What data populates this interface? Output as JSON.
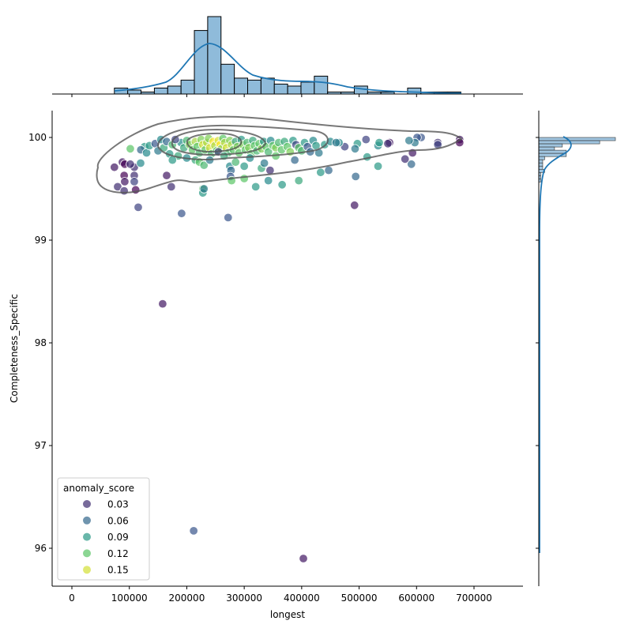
{
  "chart_data": {
    "type": "scatter",
    "subtype": "jointplot with marginal histograms and KDE contours",
    "xlabel": "longest",
    "ylabel": "Completeness_Specific",
    "xlim": [
      -35000,
      785000
    ],
    "ylim": [
      95.6,
      100.26
    ],
    "xticks": [
      0,
      100000,
      200000,
      300000,
      400000,
      500000,
      600000,
      700000
    ],
    "xtick_labels": [
      "0",
      "100000",
      "200000",
      "300000",
      "400000",
      "500000",
      "600000",
      "700000"
    ],
    "yticks": [
      96,
      97,
      98,
      99,
      100
    ],
    "ytick_labels": [
      "96",
      "97",
      "98",
      "99",
      "100"
    ],
    "grid": false,
    "hue": "anomaly_score",
    "colormap": "viridis",
    "hue_range": [
      0.01,
      0.16
    ],
    "legend": {
      "title": "anomaly_score",
      "placement": "lower-left",
      "entries": [
        {
          "label": "0.03",
          "value": 0.03
        },
        {
          "label": "0.06",
          "value": 0.06
        },
        {
          "label": "0.09",
          "value": 0.09
        },
        {
          "label": "0.12",
          "value": 0.12
        },
        {
          "label": "0.15",
          "value": 0.15
        }
      ]
    },
    "points": [
      [
        74000,
        99.71,
        0.02
      ],
      [
        88000,
        99.76,
        0.02
      ],
      [
        92000,
        99.74,
        0.01
      ],
      [
        91000,
        99.63,
        0.01
      ],
      [
        108600,
        99.71,
        0.03
      ],
      [
        108600,
        99.63,
        0.03
      ],
      [
        108600,
        99.57,
        0.04
      ],
      [
        79700,
        99.52,
        0.03
      ],
      [
        91000,
        99.48,
        0.03
      ],
      [
        111000,
        99.49,
        0.01
      ],
      [
        92000,
        99.57,
        0.02
      ],
      [
        115500,
        99.32,
        0.04
      ],
      [
        101700,
        99.74,
        0.03
      ],
      [
        101700,
        99.89,
        0.12
      ],
      [
        119600,
        99.75,
        0.08
      ],
      [
        126500,
        99.91,
        0.09
      ],
      [
        165000,
        99.63,
        0.02
      ],
      [
        173000,
        99.52,
        0.03
      ],
      [
        191000,
        99.26,
        0.05
      ],
      [
        272000,
        99.22,
        0.05
      ],
      [
        158000,
        98.38,
        0.02
      ],
      [
        212000,
        96.17,
        0.05
      ],
      [
        403000,
        95.9,
        0.02
      ],
      [
        492000,
        99.34,
        0.02
      ],
      [
        494000,
        99.62,
        0.06
      ],
      [
        533000,
        99.72,
        0.09
      ],
      [
        514000,
        99.81,
        0.09
      ],
      [
        591000,
        99.74,
        0.06
      ],
      [
        580000,
        99.79,
        0.03
      ],
      [
        593000,
        99.85,
        0.02
      ],
      [
        637000,
        99.95,
        0.03
      ],
      [
        637000,
        99.93,
        0.04
      ],
      [
        675000,
        99.98,
        0.02
      ],
      [
        675000,
        99.95,
        0.01
      ],
      [
        608000,
        100.0,
        0.05
      ],
      [
        601000,
        100.0,
        0.05
      ],
      [
        597000,
        99.95,
        0.07
      ],
      [
        587000,
        99.97,
        0.07
      ],
      [
        553000,
        99.95,
        0.02
      ],
      [
        550000,
        99.94,
        0.03
      ],
      [
        533000,
        99.92,
        0.08
      ],
      [
        535000,
        99.95,
        0.09
      ],
      [
        512000,
        99.98,
        0.04
      ],
      [
        497000,
        99.94,
        0.09
      ],
      [
        493000,
        99.89,
        0.07
      ],
      [
        475000,
        99.91,
        0.04
      ],
      [
        465000,
        99.95,
        0.08
      ],
      [
        447000,
        99.68,
        0.06
      ],
      [
        433000,
        99.66,
        0.09
      ],
      [
        395000,
        99.58,
        0.1
      ],
      [
        366000,
        99.54,
        0.09
      ],
      [
        388000,
        99.78,
        0.06
      ],
      [
        190000,
        99.95,
        0.08
      ],
      [
        195000,
        99.9,
        0.1
      ],
      [
        200000,
        99.97,
        0.11
      ],
      [
        205000,
        99.93,
        0.13
      ],
      [
        210000,
        99.88,
        0.12
      ],
      [
        215000,
        99.96,
        0.14
      ],
      [
        218000,
        99.91,
        0.12
      ],
      [
        222000,
        99.85,
        0.11
      ],
      [
        225000,
        99.98,
        0.13
      ],
      [
        228000,
        99.93,
        0.15
      ],
      [
        232000,
        99.88,
        0.12
      ],
      [
        235000,
        99.95,
        0.14
      ],
      [
        238000,
        99.99,
        0.13
      ],
      [
        240000,
        99.9,
        0.15
      ],
      [
        243000,
        99.84,
        0.11
      ],
      [
        246000,
        99.96,
        0.16
      ],
      [
        249000,
        99.92,
        0.14
      ],
      [
        252000,
        99.87,
        0.12
      ],
      [
        255000,
        99.97,
        0.15
      ],
      [
        258000,
        99.93,
        0.16
      ],
      [
        260000,
        99.89,
        0.13
      ],
      [
        263000,
        99.99,
        0.12
      ],
      [
        266000,
        99.95,
        0.14
      ],
      [
        269000,
        99.9,
        0.15
      ],
      [
        272000,
        99.85,
        0.11
      ],
      [
        275000,
        99.97,
        0.13
      ],
      [
        278000,
        99.93,
        0.14
      ],
      [
        281000,
        99.88,
        0.12
      ],
      [
        285000,
        99.96,
        0.1
      ],
      [
        288000,
        99.91,
        0.13
      ],
      [
        291000,
        99.85,
        0.12
      ],
      [
        295000,
        99.98,
        0.09
      ],
      [
        298000,
        99.93,
        0.13
      ],
      [
        302000,
        99.88,
        0.12
      ],
      [
        305000,
        99.95,
        0.11
      ],
      [
        308000,
        99.9,
        0.13
      ],
      [
        312000,
        99.84,
        0.12
      ],
      [
        315000,
        99.97,
        0.1
      ],
      [
        318000,
        99.92,
        0.12
      ],
      [
        322000,
        99.87,
        0.11
      ],
      [
        326000,
        99.94,
        0.12
      ],
      [
        330000,
        99.89,
        0.13
      ],
      [
        334000,
        99.96,
        0.09
      ],
      [
        338000,
        99.91,
        0.12
      ],
      [
        342000,
        99.86,
        0.11
      ],
      [
        346000,
        99.97,
        0.08
      ],
      [
        350000,
        99.92,
        0.12
      ],
      [
        355000,
        99.9,
        0.13
      ],
      [
        360000,
        99.95,
        0.11
      ],
      [
        365000,
        99.88,
        0.12
      ],
      [
        370000,
        99.96,
        0.1
      ],
      [
        375000,
        99.91,
        0.12
      ],
      [
        380000,
        99.86,
        0.13
      ],
      [
        385000,
        99.97,
        0.09
      ],
      [
        390000,
        99.93,
        0.04
      ],
      [
        395000,
        99.9,
        0.12
      ],
      [
        400000,
        99.87,
        0.11
      ],
      [
        405000,
        99.95,
        0.09
      ],
      [
        410000,
        99.91,
        0.05
      ],
      [
        415000,
        99.86,
        0.06
      ],
      [
        420000,
        99.97,
        0.08
      ],
      [
        425000,
        99.92,
        0.09
      ],
      [
        430000,
        99.85,
        0.07
      ],
      [
        440000,
        99.93,
        0.09
      ],
      [
        450000,
        99.96,
        0.08
      ],
      [
        460000,
        99.95,
        0.07
      ],
      [
        120000,
        99.88,
        0.06
      ],
      [
        130000,
        99.85,
        0.08
      ],
      [
        135000,
        99.92,
        0.09
      ],
      [
        145000,
        99.94,
        0.05
      ],
      [
        150000,
        99.87,
        0.07
      ],
      [
        155000,
        99.98,
        0.08
      ],
      [
        160000,
        99.9,
        0.1
      ],
      [
        165000,
        99.96,
        0.06
      ],
      [
        170000,
        99.84,
        0.09
      ],
      [
        175000,
        99.93,
        0.11
      ],
      [
        180000,
        99.98,
        0.04
      ],
      [
        185000,
        99.82,
        0.1
      ],
      [
        175000,
        99.78,
        0.09
      ],
      [
        200000,
        99.8,
        0.08
      ],
      [
        215000,
        99.78,
        0.1
      ],
      [
        222000,
        99.76,
        0.12
      ],
      [
        230000,
        99.73,
        0.11
      ],
      [
        240000,
        99.78,
        0.07
      ],
      [
        255000,
        99.86,
        0.04
      ],
      [
        265000,
        99.82,
        0.1
      ],
      [
        275000,
        99.72,
        0.08
      ],
      [
        277000,
        99.68,
        0.06
      ],
      [
        276000,
        99.62,
        0.05
      ],
      [
        278000,
        99.58,
        0.12
      ],
      [
        228000,
        99.5,
        0.12
      ],
      [
        228000,
        99.46,
        0.09
      ],
      [
        230000,
        99.5,
        0.07
      ],
      [
        300000,
        99.6,
        0.12
      ],
      [
        320000,
        99.52,
        0.09
      ],
      [
        330000,
        99.7,
        0.1
      ],
      [
        335000,
        99.75,
        0.07
      ],
      [
        345000,
        99.68,
        0.03
      ],
      [
        342000,
        99.58,
        0.08
      ],
      [
        285000,
        99.76,
        0.11
      ],
      [
        310000,
        99.8,
        0.08
      ],
      [
        355000,
        99.82,
        0.12
      ],
      [
        300000,
        99.72,
        0.09
      ]
    ],
    "x_marginal_histogram": {
      "bin_start": 74000,
      "bin_width": 23200,
      "counts": [
        3,
        2,
        1,
        3,
        4,
        7,
        32,
        39,
        15,
        8,
        7,
        8,
        5,
        4,
        6,
        9,
        1,
        1,
        4,
        1,
        1,
        0,
        3,
        1,
        1,
        1
      ],
      "kde": true
    },
    "y_marginal_histogram": {
      "bin_start": 100.0,
      "bin_width": -0.031,
      "counts": [
        39,
        31,
        12,
        8,
        14,
        14,
        3,
        2,
        2,
        2,
        3,
        1,
        1,
        1
      ],
      "kde": true
    },
    "colors": {
      "histogram": "#8fbbda",
      "kde_line": "#1f77b4",
      "contour": "#6e6e6e"
    }
  }
}
